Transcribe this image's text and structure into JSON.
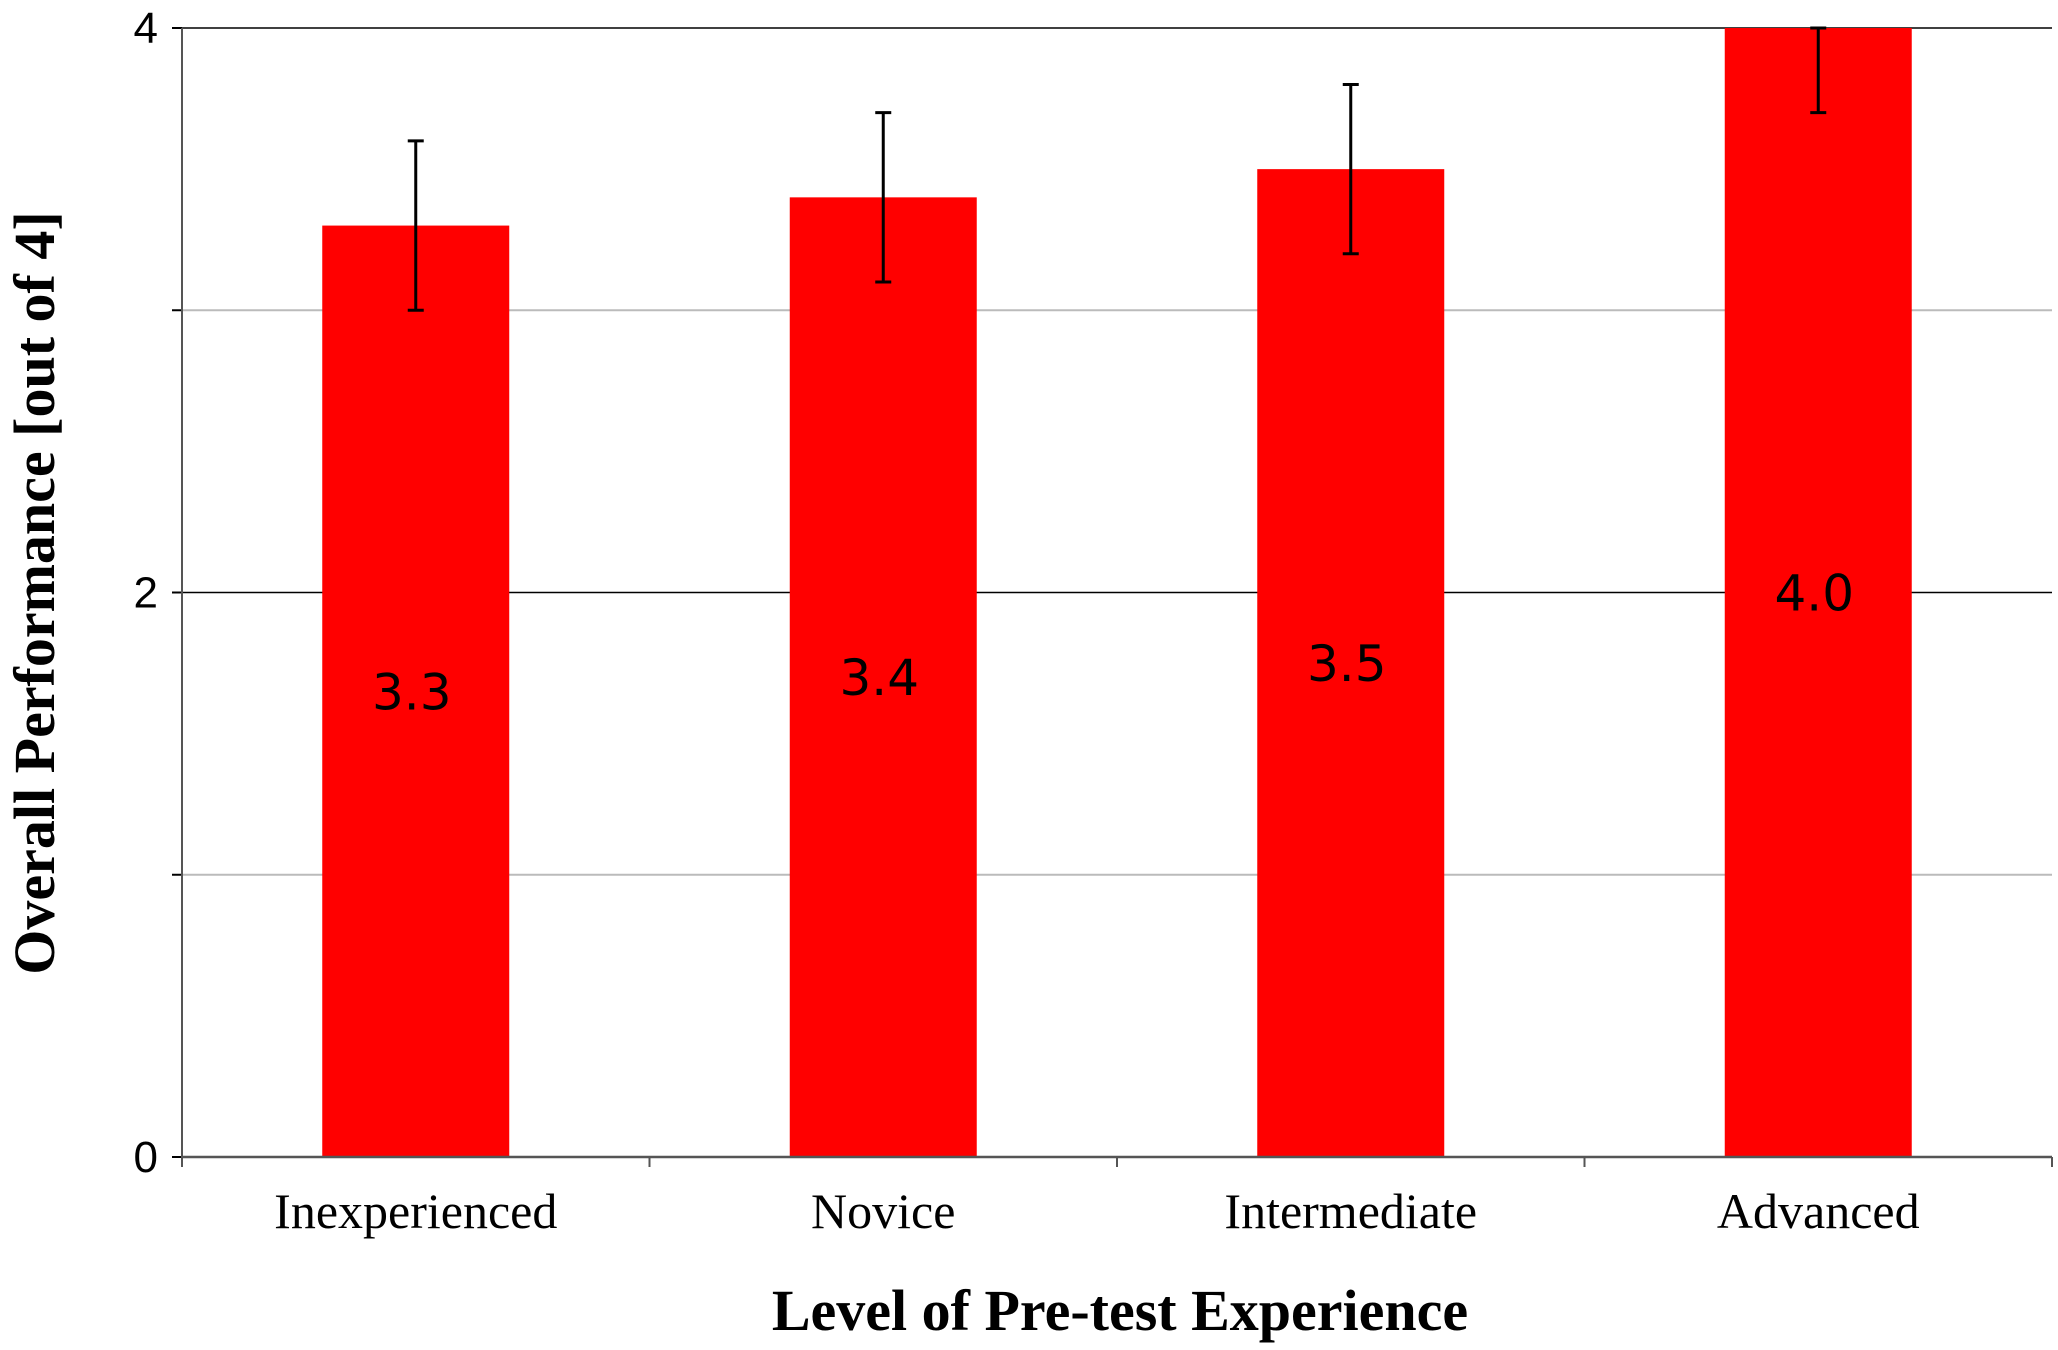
{
  "chart_data": {
    "type": "bar",
    "categories": [
      "Inexperienced",
      "Novice",
      "Intermediate",
      "Advanced"
    ],
    "values": [
      3.3,
      3.4,
      3.5,
      4.0
    ],
    "data_labels": [
      "3.3",
      "3.4",
      "3.5",
      "4.0"
    ],
    "error": [
      0.3,
      0.3,
      0.3,
      0.3
    ],
    "xlabel": "Level of Pre-test Experience",
    "ylabel": "Overall Performance [out of 4]",
    "ylim": [
      0,
      4
    ],
    "yticks": [
      {
        "value": 0,
        "label": "0"
      },
      {
        "value": 2,
        "label": "2"
      },
      {
        "value": 4,
        "label": "4"
      }
    ],
    "minor_gridlines": [
      1,
      3
    ],
    "grid": true,
    "legend": "none",
    "bar_color": "#ff0000",
    "major_grid_color": "#000000",
    "minor_grid_color": "#bbbbbb"
  }
}
